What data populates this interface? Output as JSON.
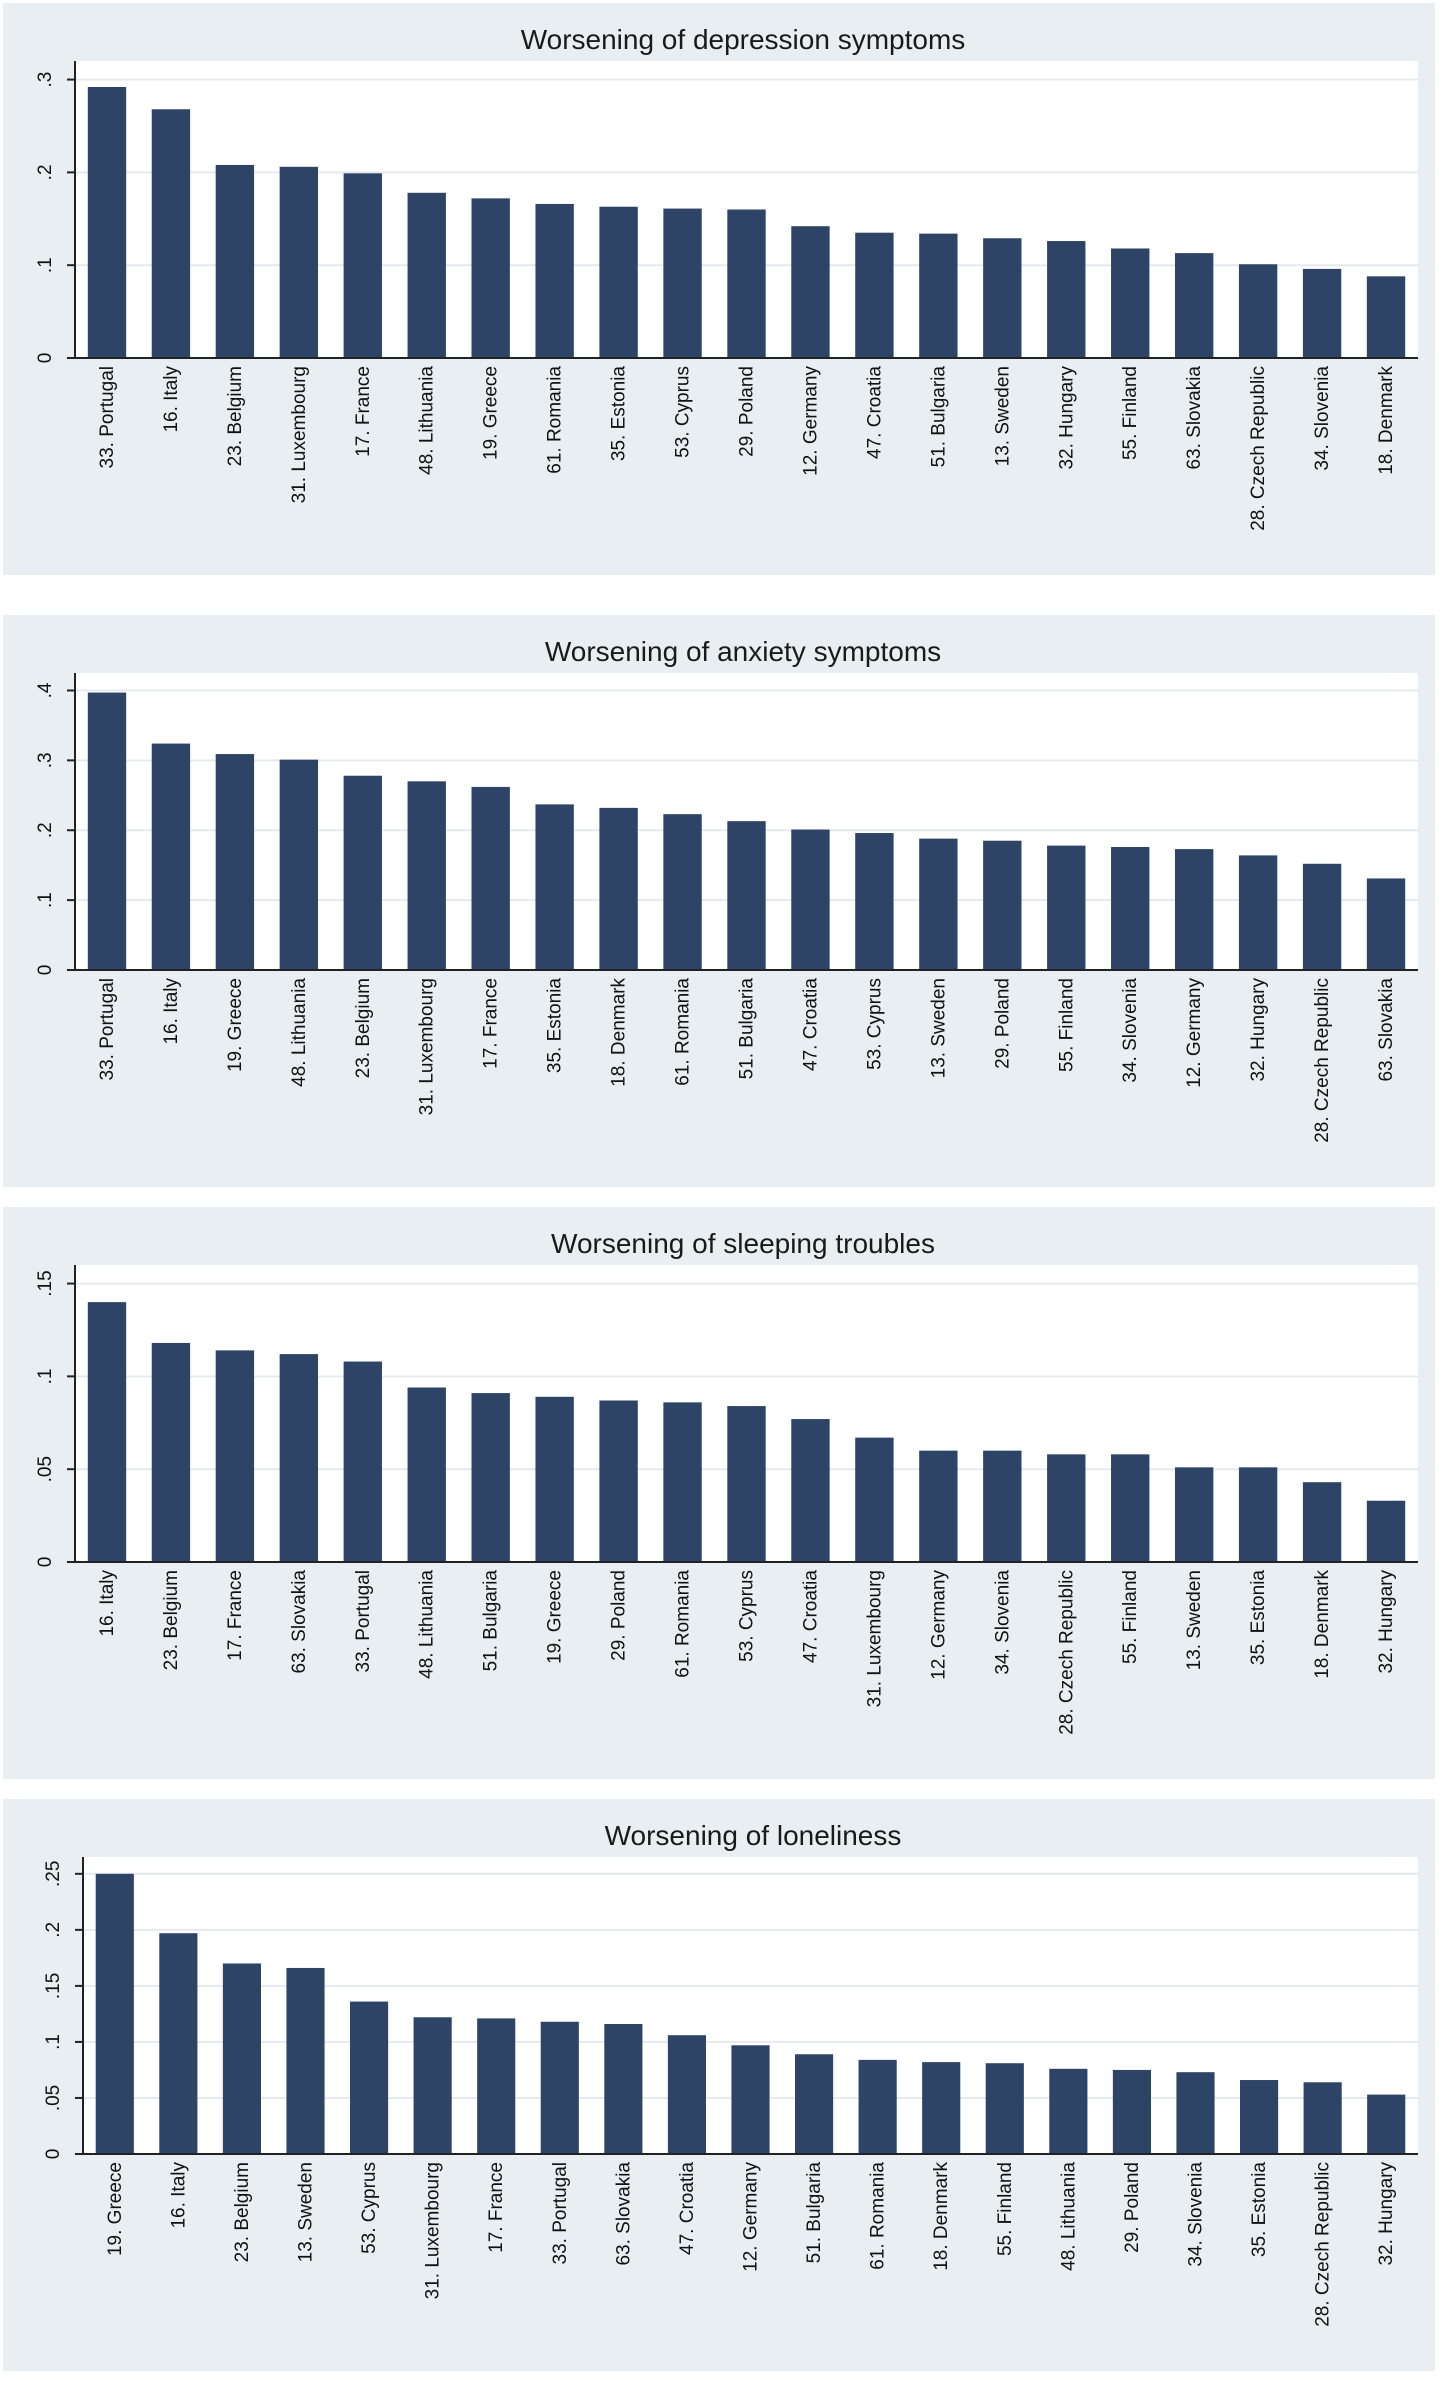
{
  "colors": {
    "bar": "#2e4466",
    "panel": "#e9eef3",
    "plot": "#ffffff"
  },
  "chart_data": [
    {
      "type": "bar",
      "title": "Worsening of depression symptoms",
      "categories": [
        "33. Portugal",
        "16. Italy",
        "23. Belgium",
        "31. Luxembourg",
        "17. France",
        "48. Lithuania",
        "19. Greece",
        "61. Romania",
        "35. Estonia",
        "53. Cyprus",
        "29. Poland",
        "12. Germany",
        "47. Croatia",
        "51. Bulgaria",
        "13. Sweden",
        "32. Hungary",
        "55. Finland",
        "63. Slovakia",
        "28. Czech Republic",
        "34. Slovenia",
        "18. Denmark"
      ],
      "values": [
        0.292,
        0.268,
        0.208,
        0.206,
        0.199,
        0.178,
        0.172,
        0.166,
        0.163,
        0.161,
        0.16,
        0.142,
        0.135,
        0.134,
        0.129,
        0.126,
        0.118,
        0.113,
        0.101,
        0.096,
        0.088
      ],
      "yticks": [
        0,
        0.1,
        0.2,
        0.3
      ],
      "ytick_labels": [
        "0",
        ".1",
        ".2",
        ".3"
      ],
      "ylim": [
        0,
        0.32
      ],
      "grid": true
    },
    {
      "type": "bar",
      "title": "Worsening of anxiety symptoms",
      "categories": [
        "33. Portugal",
        "16. Italy",
        "19. Greece",
        "48. Lithuania",
        "23. Belgium",
        "31. Luxembourg",
        "17. France",
        "35. Estonia",
        "18. Denmark",
        "61. Romania",
        "51. Bulgaria",
        "47. Croatia",
        "53. Cyprus",
        "13. Sweden",
        "29. Poland",
        "55. Finland",
        "34. Slovenia",
        "12. Germany",
        "32. Hungary",
        "28. Czech Republic",
        "63. Slovakia"
      ],
      "values": [
        0.397,
        0.324,
        0.309,
        0.301,
        0.278,
        0.27,
        0.262,
        0.237,
        0.232,
        0.223,
        0.213,
        0.201,
        0.196,
        0.188,
        0.185,
        0.178,
        0.176,
        0.173,
        0.164,
        0.152,
        0.131
      ],
      "yticks": [
        0,
        0.1,
        0.2,
        0.3,
        0.4
      ],
      "ytick_labels": [
        "0",
        ".1",
        ".2",
        ".3",
        ".4"
      ],
      "ylim": [
        0,
        0.425
      ],
      "grid": true
    },
    {
      "type": "bar",
      "title": "Worsening of sleeping troubles",
      "categories": [
        "16. Italy",
        "23. Belgium",
        "17. France",
        "63. Slovakia",
        "33. Portugal",
        "48. Lithuania",
        "51. Bulgaria",
        "19. Greece",
        "29. Poland",
        "61. Romania",
        "53. Cyprus",
        "47. Croatia",
        "31. Luxembourg",
        "12. Germany",
        "34. Slovenia",
        "28. Czech Republic",
        "55. Finland",
        "13. Sweden",
        "35. Estonia",
        "18. Denmark",
        "32. Hungary"
      ],
      "values": [
        0.14,
        0.118,
        0.114,
        0.112,
        0.108,
        0.094,
        0.091,
        0.089,
        0.087,
        0.086,
        0.084,
        0.077,
        0.067,
        0.06,
        0.06,
        0.058,
        0.058,
        0.051,
        0.051,
        0.043,
        0.033
      ],
      "yticks": [
        0,
        0.05,
        0.1,
        0.15
      ],
      "ytick_labels": [
        "0",
        ".05",
        ".1",
        ".15"
      ],
      "ylim": [
        0,
        0.16
      ],
      "grid": true
    },
    {
      "type": "bar",
      "title": "Worsening of loneliness",
      "categories": [
        "19. Greece",
        "16. Italy",
        "23. Belgium",
        "13. Sweden",
        "53. Cyprus",
        "31. Luxembourg",
        "17. France",
        "33. Portugal",
        "63. Slovakia",
        "47. Croatia",
        "12. Germany",
        "51. Bulgaria",
        "61. Romania",
        "18. Denmark",
        "55. Finland",
        "48. Lithuania",
        "29. Poland",
        "34. Slovenia",
        "35. Estonia",
        "28. Czech Republic",
        "32. Hungary"
      ],
      "values": [
        0.25,
        0.197,
        0.17,
        0.166,
        0.136,
        0.122,
        0.121,
        0.118,
        0.116,
        0.106,
        0.097,
        0.089,
        0.084,
        0.082,
        0.081,
        0.076,
        0.075,
        0.073,
        0.066,
        0.064,
        0.053
      ],
      "yticks": [
        0,
        0.05,
        0.1,
        0.15,
        0.2,
        0.25
      ],
      "ytick_labels": [
        "0",
        ".05",
        ".1",
        ".15",
        ".2",
        ".25"
      ],
      "ylim": [
        0,
        0.265
      ],
      "grid": true
    }
  ]
}
